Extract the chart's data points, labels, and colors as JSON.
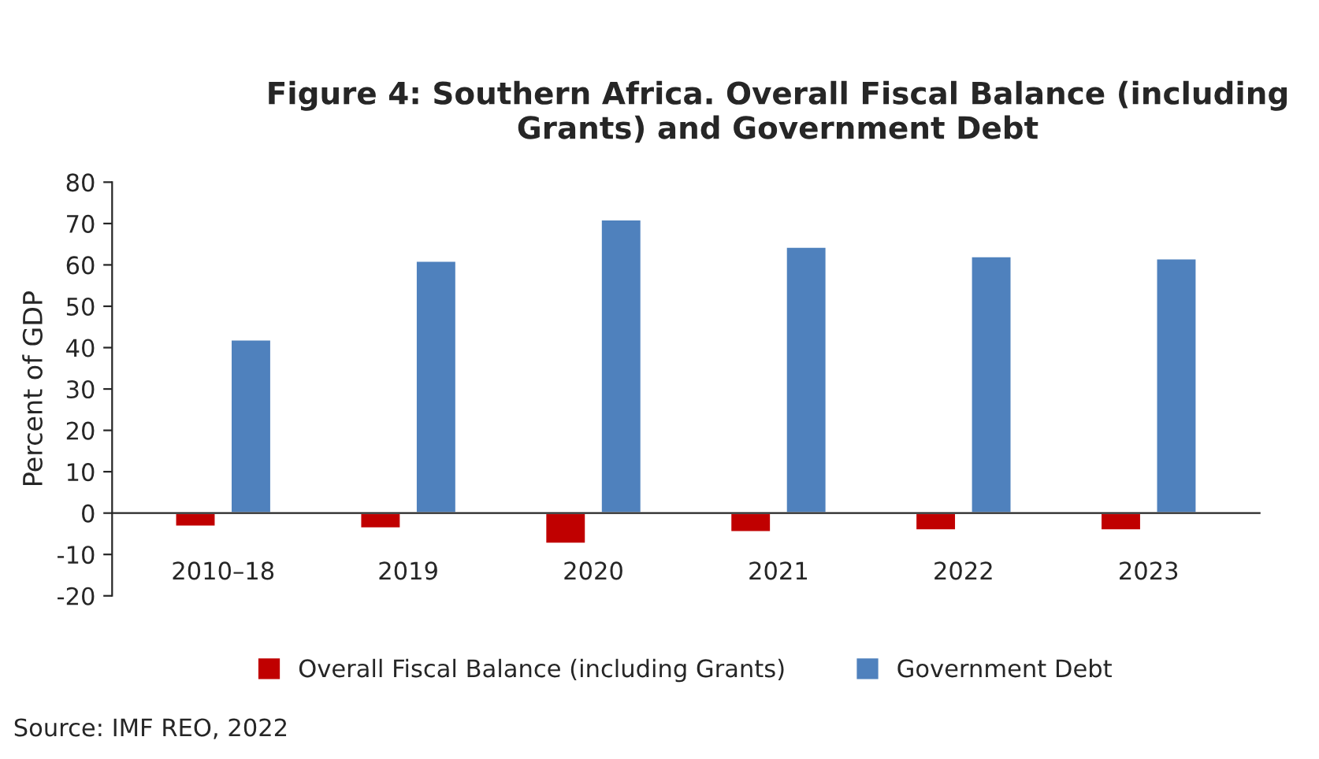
{
  "chart_data": {
    "type": "bar",
    "title": "Figure 4: Southern Africa. Overall Fiscal Balance (including Grants) and Government Debt",
    "ylabel": "Percent of GDP",
    "categories": [
      "2010–18",
      "2019",
      "2020",
      "2021",
      "2022",
      "2023"
    ],
    "series": [
      {
        "name": "Overall Fiscal Balance (including Grants)",
        "color": "#c00000",
        "values": [
          -3.3,
          -3.7,
          -7.4,
          -4.6,
          -4.2,
          -4.2
        ]
      },
      {
        "name": "Government Debt",
        "color": "#4f81bd",
        "values": [
          42,
          61,
          71,
          64.4,
          62.1,
          61.6
        ]
      }
    ],
    "ylim": [
      -20,
      80
    ],
    "yticks": [
      {
        "value": -20,
        "label": "-20"
      },
      {
        "value": -10,
        "label": "-10"
      },
      0,
      10,
      20,
      30,
      40,
      50,
      60,
      70,
      80
    ],
    "grid": false,
    "legend": "bottom",
    "annotations": [
      "Source: IMF REO, 2022"
    ]
  }
}
